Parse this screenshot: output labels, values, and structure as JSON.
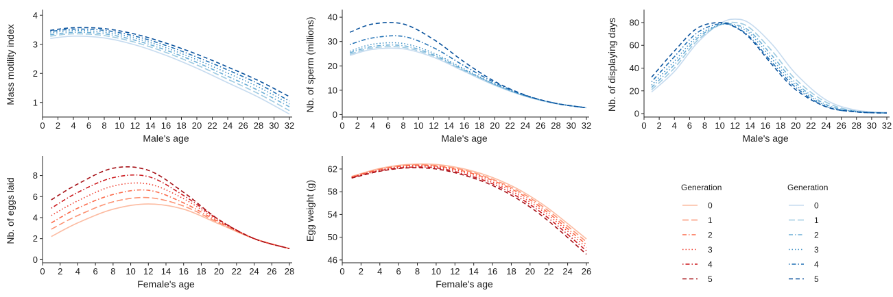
{
  "palettes": {
    "blue": [
      "#c6dbef",
      "#9ecae1",
      "#6baed6",
      "#4292c6",
      "#2171b5",
      "#08519c"
    ],
    "red": [
      "#fcbba1",
      "#fc9272",
      "#fb6a4a",
      "#ef3b2c",
      "#cb181d",
      "#a50f15"
    ]
  },
  "line_styles": [
    "solid",
    "longdash",
    "dashdot",
    "dotted",
    "dotdash",
    "dashed"
  ],
  "legends": [
    {
      "title": "Generation",
      "palette": "red",
      "labels": [
        "0",
        "1",
        "2",
        "3",
        "4",
        "5"
      ]
    },
    {
      "title": "Generation",
      "palette": "blue",
      "labels": [
        "0",
        "1",
        "2",
        "3",
        "4",
        "5"
      ]
    }
  ],
  "chart_data": [
    {
      "type": "line",
      "xlabel": "Male's age",
      "ylabel": "Mass motility index",
      "xlim": [
        0,
        32
      ],
      "ylim": [
        0.5,
        4.1
      ],
      "xticks": [
        "0",
        "2",
        "4",
        "6",
        "8",
        "10",
        "12",
        "14",
        "16",
        "18",
        "20",
        "22",
        "24",
        "26",
        "28",
        "30",
        "32"
      ],
      "yticks": [
        "1",
        "2",
        "3",
        "4"
      ],
      "palette": "blue",
      "x": [
        1,
        4,
        8,
        12,
        16,
        20,
        24,
        28,
        32
      ],
      "series": [
        {
          "name": "0",
          "values": [
            3.2,
            3.28,
            3.22,
            2.98,
            2.62,
            2.18,
            1.68,
            1.18,
            0.6
          ]
        },
        {
          "name": "1",
          "values": [
            3.28,
            3.36,
            3.3,
            3.07,
            2.72,
            2.29,
            1.8,
            1.3,
            0.72
          ]
        },
        {
          "name": "2",
          "values": [
            3.33,
            3.41,
            3.36,
            3.14,
            2.8,
            2.38,
            1.9,
            1.41,
            0.85
          ]
        },
        {
          "name": "3",
          "values": [
            3.39,
            3.47,
            3.42,
            3.21,
            2.88,
            2.47,
            2.01,
            1.53,
            0.95
          ]
        },
        {
          "name": "4",
          "values": [
            3.44,
            3.52,
            3.48,
            3.28,
            2.96,
            2.56,
            2.12,
            1.64,
            1.05
          ]
        },
        {
          "name": "5",
          "values": [
            3.48,
            3.57,
            3.54,
            3.35,
            3.04,
            2.66,
            2.22,
            1.75,
            1.2
          ]
        }
      ]
    },
    {
      "type": "line",
      "xlabel": "Male's age",
      "ylabel": "Nb. of sperm (millions)",
      "xlim": [
        0,
        32
      ],
      "ylim": [
        -1,
        42
      ],
      "xticks": [
        "0",
        "2",
        "4",
        "6",
        "8",
        "10",
        "12",
        "14",
        "16",
        "18",
        "20",
        "22",
        "24",
        "26",
        "28",
        "30",
        "32"
      ],
      "yticks": [
        "0",
        "10",
        "20",
        "30",
        "40"
      ],
      "palette": "blue",
      "x": [
        1,
        4,
        8,
        12,
        16,
        20,
        24,
        28,
        32
      ],
      "series": [
        {
          "name": "0",
          "values": [
            24.3,
            26.8,
            27.0,
            23.5,
            17.7,
            12.0,
            7.5,
            4.5,
            2.8
          ]
        },
        {
          "name": "1",
          "values": [
            24.8,
            27.4,
            27.6,
            24.0,
            18.0,
            12.2,
            7.6,
            4.6,
            2.8
          ]
        },
        {
          "name": "2",
          "values": [
            25.4,
            28.0,
            28.3,
            24.5,
            18.3,
            12.4,
            7.7,
            4.6,
            2.8
          ]
        },
        {
          "name": "3",
          "values": [
            26.0,
            28.9,
            29.2,
            25.2,
            18.7,
            12.5,
            7.7,
            4.6,
            2.8
          ]
        },
        {
          "name": "4",
          "values": [
            28.8,
            31.5,
            32.1,
            27.4,
            20.0,
            13.1,
            7.9,
            4.6,
            2.8
          ]
        },
        {
          "name": "5",
          "values": [
            33.8,
            37.2,
            37.2,
            30.8,
            21.6,
            13.6,
            8.0,
            4.6,
            2.8
          ]
        }
      ]
    },
    {
      "type": "line",
      "xlabel": "Male's age",
      "ylabel": "Nb. of displaying days",
      "xlim": [
        0,
        32
      ],
      "ylim": [
        -3,
        89
      ],
      "xticks": [
        "0",
        "2",
        "4",
        "6",
        "8",
        "10",
        "12",
        "14",
        "16",
        "18",
        "20",
        "22",
        "24",
        "26",
        "28",
        "30",
        "32"
      ],
      "yticks": [
        "0",
        "20",
        "40",
        "60",
        "80"
      ],
      "palette": "blue",
      "x": [
        1,
        4,
        7,
        10,
        12,
        14,
        17,
        20,
        24,
        28,
        32
      ],
      "series": [
        {
          "name": "0",
          "values": [
            19,
            37,
            62,
            79,
            83,
            79,
            60,
            35,
            12,
            3,
            1
          ]
        },
        {
          "name": "1",
          "values": [
            21,
            40,
            64,
            78,
            80,
            75,
            54,
            30,
            10,
            2,
            0.5
          ]
        },
        {
          "name": "2",
          "values": [
            23,
            43,
            66,
            78,
            78,
            72,
            50,
            27,
            8,
            2,
            0.5
          ]
        },
        {
          "name": "3",
          "values": [
            25,
            46,
            68,
            78,
            77,
            70,
            47,
            25,
            7,
            2,
            0.5
          ]
        },
        {
          "name": "4",
          "values": [
            28,
            50,
            71,
            79,
            76,
            67,
            44,
            23,
            6,
            1.5,
            0.5
          ]
        },
        {
          "name": "5",
          "values": [
            32,
            55,
            75,
            80,
            76,
            66,
            42,
            21,
            6,
            1.5,
            0.5
          ]
        }
      ]
    },
    {
      "type": "line",
      "xlabel": "Female's age",
      "ylabel": "Nb. of eggs laid",
      "xlim": [
        0,
        28
      ],
      "ylim": [
        -0.3,
        9.6
      ],
      "xticks": [
        "0",
        "2",
        "4",
        "6",
        "8",
        "10",
        "12",
        "14",
        "16",
        "18",
        "20",
        "22",
        "24",
        "26",
        "28"
      ],
      "yticks": [
        "0",
        "2",
        "4",
        "6",
        "8"
      ],
      "palette": "red",
      "x": [
        1,
        4,
        8,
        12,
        16,
        20,
        24,
        28
      ],
      "series": [
        {
          "name": "0",
          "values": [
            2.2,
            3.5,
            4.8,
            5.3,
            4.8,
            3.4,
            2.0,
            1.05
          ]
        },
        {
          "name": "1",
          "values": [
            2.9,
            4.2,
            5.5,
            5.9,
            5.1,
            3.5,
            2.0,
            1.05
          ]
        },
        {
          "name": "2",
          "values": [
            3.5,
            4.9,
            6.2,
            6.6,
            5.4,
            3.6,
            2.0,
            1.05
          ]
        },
        {
          "name": "3",
          "values": [
            4.2,
            5.6,
            7.0,
            7.2,
            5.8,
            3.7,
            2.0,
            1.05
          ]
        },
        {
          "name": "4",
          "values": [
            4.9,
            6.4,
            7.8,
            7.9,
            6.1,
            3.8,
            2.0,
            1.05
          ]
        },
        {
          "name": "5",
          "values": [
            5.7,
            7.2,
            8.7,
            8.5,
            6.4,
            3.8,
            2.0,
            1.05
          ]
        }
      ]
    },
    {
      "type": "line",
      "xlabel": "Female's age",
      "ylabel": "Egg weight (g)",
      "xlim": [
        0,
        26
      ],
      "ylim": [
        45.5,
        63.8
      ],
      "xticks": [
        "0",
        "2",
        "4",
        "6",
        "8",
        "10",
        "12",
        "14",
        "16",
        "18",
        "20",
        "22",
        "24",
        "26"
      ],
      "yticks": [
        "46",
        "50",
        "54",
        "58",
        "62"
      ],
      "palette": "red",
      "x": [
        1,
        4,
        7,
        10,
        13,
        16,
        19,
        22,
        26
      ],
      "series": [
        {
          "name": "0",
          "values": [
            60.7,
            62.1,
            62.8,
            62.8,
            62.0,
            60.5,
            58.2,
            55.0,
            49.7
          ]
        },
        {
          "name": "1",
          "values": [
            60.6,
            62.0,
            62.7,
            62.6,
            61.8,
            60.2,
            57.9,
            54.6,
            49.2
          ]
        },
        {
          "name": "2",
          "values": [
            60.6,
            61.9,
            62.6,
            62.5,
            61.6,
            60.0,
            57.6,
            54.2,
            48.7
          ]
        },
        {
          "name": "3",
          "values": [
            60.5,
            61.8,
            62.5,
            62.4,
            61.4,
            59.7,
            57.2,
            53.8,
            48.2
          ]
        },
        {
          "name": "4",
          "values": [
            60.5,
            61.7,
            62.3,
            62.2,
            61.1,
            59.4,
            56.8,
            53.3,
            47.6
          ]
        },
        {
          "name": "5",
          "values": [
            60.4,
            61.6,
            62.2,
            62.0,
            60.9,
            59.1,
            56.4,
            52.8,
            47.0
          ]
        }
      ]
    }
  ]
}
